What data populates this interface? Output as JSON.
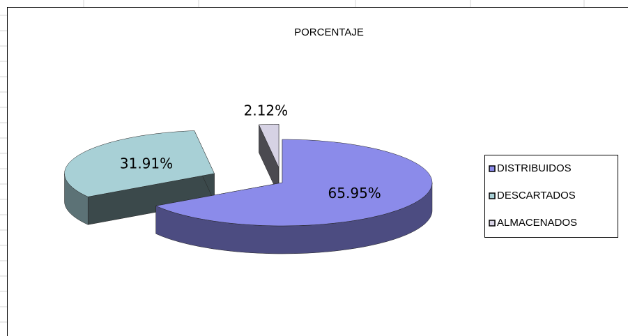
{
  "chart_data": {
    "type": "pie3d",
    "title": "PORCENTAJE",
    "categories": [
      "DISTRIBUIDOS",
      "DESCARTADOS",
      "ALMACENADOS"
    ],
    "values": [
      65.95,
      31.91,
      2.12
    ],
    "value_labels": [
      "65.95%",
      "31.91%",
      "2.12%"
    ],
    "colors": [
      "#8b8bea",
      "#a8d0d6",
      "#d6d2e4"
    ],
    "legend": "right"
  }
}
